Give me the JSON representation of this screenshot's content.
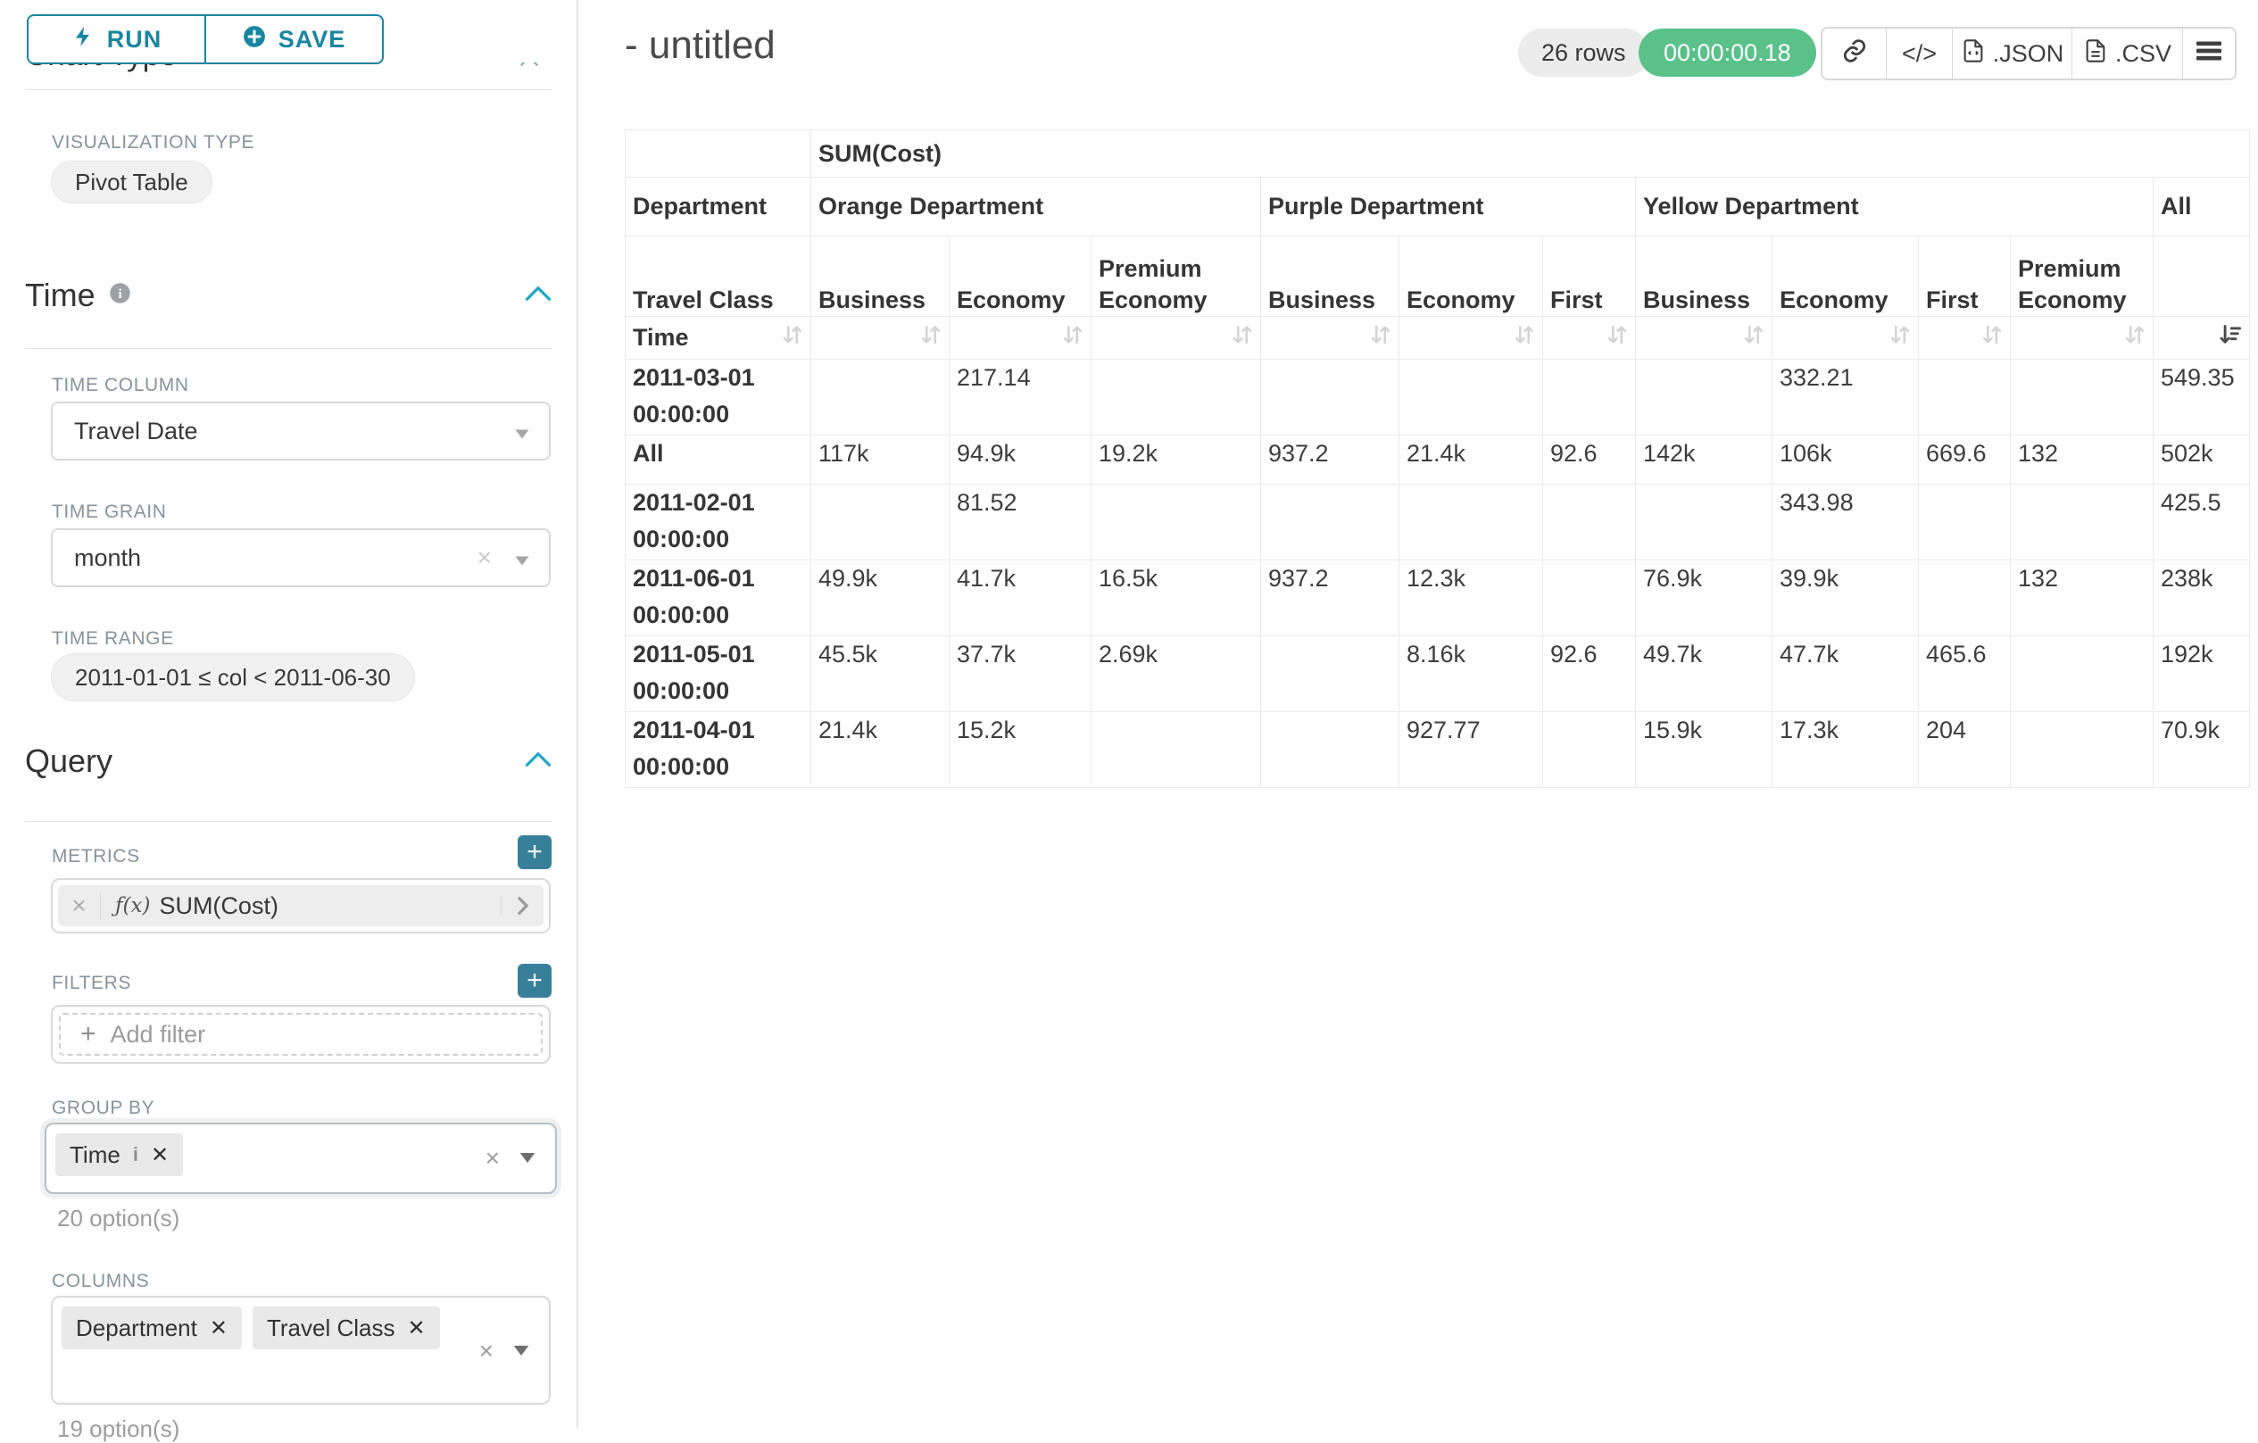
{
  "sidebar": {
    "run_button": "RUN",
    "save_button": "SAVE",
    "clipped_section": "Chart Type",
    "viz_type_label": "VISUALIZATION TYPE",
    "viz_type_value": "Pivot Table",
    "time": {
      "title": "Time",
      "time_column_label": "TIME COLUMN",
      "time_column_value": "Travel Date",
      "time_grain_label": "TIME GRAIN",
      "time_grain_value": "month",
      "time_range_label": "TIME RANGE",
      "time_range_value": "2011-01-01 ≤ col < 2011-06-30"
    },
    "query": {
      "title": "Query",
      "metrics_label": "METRICS",
      "metric_fx": "ƒ(x)",
      "metric_value": "SUM(Cost)",
      "filters_label": "FILTERS",
      "add_filter_placeholder": "Add filter",
      "group_by_label": "GROUP BY",
      "group_by_chip": "Time",
      "group_by_hint": "20 option(s)",
      "columns_label": "COLUMNS",
      "columns_chips": [
        "Department",
        "Travel Class"
      ],
      "columns_hint": "19 option(s)"
    }
  },
  "header": {
    "title": "- untitled",
    "row_count": "26 rows",
    "query_time": "00:00:00.18",
    "code_label": "</>",
    "json_label": ".JSON",
    "csv_label": ".CSV"
  },
  "pivot": {
    "metric_header": "SUM(Cost)",
    "row_dimension": "Department",
    "col_dimension": "Travel Class",
    "time_label": "Time",
    "groups": [
      {
        "name": "Orange Department",
        "cols": [
          "Business",
          "Economy",
          "Premium Economy"
        ]
      },
      {
        "name": "Purple Department",
        "cols": [
          "Business",
          "Economy",
          "First"
        ]
      },
      {
        "name": "Yellow Department",
        "cols": [
          "Business",
          "Economy",
          "First",
          "Premium Economy"
        ]
      },
      {
        "name": "All",
        "cols": [
          ""
        ]
      }
    ],
    "rows": [
      {
        "label": "2011-03-01 00:00:00",
        "values": [
          "",
          "217.14",
          "",
          "",
          "",
          "",
          "",
          "332.21",
          "",
          "",
          "549.35"
        ]
      },
      {
        "label": "All",
        "values": [
          "117k",
          "94.9k",
          "19.2k",
          "937.2",
          "21.4k",
          "92.6",
          "142k",
          "106k",
          "669.6",
          "132",
          "502k"
        ]
      },
      {
        "label": "2011-02-01 00:00:00",
        "values": [
          "",
          "81.52",
          "",
          "",
          "",
          "",
          "",
          "343.98",
          "",
          "",
          "425.5"
        ]
      },
      {
        "label": "2011-06-01 00:00:00",
        "values": [
          "49.9k",
          "41.7k",
          "16.5k",
          "937.2",
          "12.3k",
          "",
          "76.9k",
          "39.9k",
          "",
          "132",
          "238k"
        ]
      },
      {
        "label": "2011-05-01 00:00:00",
        "values": [
          "45.5k",
          "37.7k",
          "2.69k",
          "",
          "8.16k",
          "92.6",
          "49.7k",
          "47.7k",
          "465.6",
          "",
          "192k"
        ]
      },
      {
        "label": "2011-04-01 00:00:00",
        "values": [
          "21.4k",
          "15.2k",
          "",
          "",
          "927.77",
          "",
          "15.9k",
          "17.3k",
          "204",
          "",
          "70.9k"
        ]
      }
    ]
  },
  "colors": {
    "primary": "#20a7c9",
    "primary_dark": "#1a85a0",
    "success": "#5ac189"
  }
}
